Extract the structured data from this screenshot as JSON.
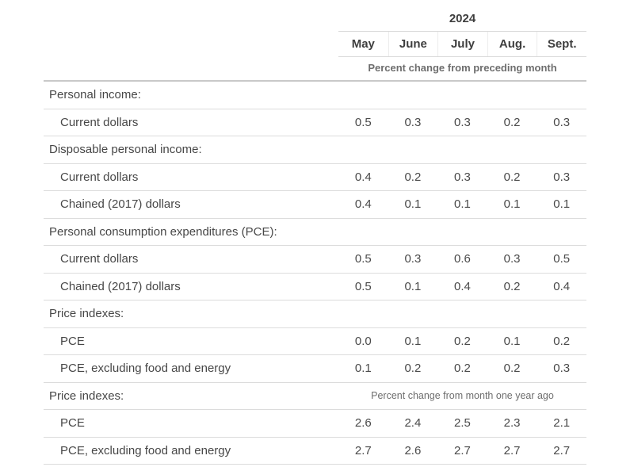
{
  "table": {
    "year_header": "2024",
    "columns": [
      "May",
      "June",
      "July",
      "Aug.",
      "Sept."
    ],
    "band_top": "Percent change from preceding month",
    "sections": [
      {
        "header": "Personal income:",
        "annotation": "",
        "rows": [
          {
            "label": "Current dollars",
            "values": [
              "0.5",
              "0.3",
              "0.3",
              "0.2",
              "0.3"
            ]
          }
        ]
      },
      {
        "header": "Disposable personal income:",
        "annotation": "",
        "rows": [
          {
            "label": "Current dollars",
            "values": [
              "0.4",
              "0.2",
              "0.3",
              "0.2",
              "0.3"
            ]
          },
          {
            "label": "Chained (2017) dollars",
            "values": [
              "0.4",
              "0.1",
              "0.1",
              "0.1",
              "0.1"
            ]
          }
        ]
      },
      {
        "header": "Personal consumption expenditures (PCE):",
        "annotation": "",
        "rows": [
          {
            "label": "Current dollars",
            "values": [
              "0.5",
              "0.3",
              "0.6",
              "0.3",
              "0.5"
            ]
          },
          {
            "label": "Chained (2017) dollars",
            "values": [
              "0.5",
              "0.1",
              "0.4",
              "0.2",
              "0.4"
            ]
          }
        ]
      },
      {
        "header": "Price indexes:",
        "annotation": "",
        "rows": [
          {
            "label": "PCE",
            "values": [
              "0.0",
              "0.1",
              "0.2",
              "0.1",
              "0.2"
            ]
          },
          {
            "label": "PCE, excluding food and energy",
            "values": [
              "0.1",
              "0.2",
              "0.2",
              "0.2",
              "0.3"
            ]
          }
        ]
      },
      {
        "header": "Price indexes:",
        "annotation": "Percent change from month one year ago",
        "rows": [
          {
            "label": "PCE",
            "values": [
              "2.6",
              "2.4",
              "2.5",
              "2.3",
              "2.1"
            ]
          },
          {
            "label": "PCE, excluding food and energy",
            "values": [
              "2.7",
              "2.6",
              "2.7",
              "2.7",
              "2.7"
            ]
          }
        ]
      }
    ],
    "colors": {
      "text": "#474747",
      "muted_text": "#6e6e6e",
      "row_line": "#dcdcdc",
      "header_line": "#d9d9d9",
      "thick_line": "#c9c9c9",
      "background": "#ffffff"
    }
  },
  "chart_data": {
    "type": "table",
    "title": "2024",
    "columns": [
      "May",
      "June",
      "July",
      "Aug.",
      "Sept."
    ],
    "units_rows_1_to_11": "Percent change from preceding month",
    "units_rows_12_to_14": "Percent change from month one year ago",
    "rows": [
      {
        "label": "Personal income:",
        "section_header": true,
        "values": []
      },
      {
        "label": "Current dollars",
        "values": [
          0.5,
          0.3,
          0.3,
          0.2,
          0.3
        ]
      },
      {
        "label": "Disposable personal income:",
        "section_header": true,
        "values": []
      },
      {
        "label": "Current dollars",
        "values": [
          0.4,
          0.2,
          0.3,
          0.2,
          0.3
        ]
      },
      {
        "label": "Chained (2017) dollars",
        "values": [
          0.4,
          0.1,
          0.1,
          0.1,
          0.1
        ]
      },
      {
        "label": "Personal consumption expenditures (PCE):",
        "section_header": true,
        "values": []
      },
      {
        "label": "Current dollars",
        "values": [
          0.5,
          0.3,
          0.6,
          0.3,
          0.5
        ]
      },
      {
        "label": "Chained (2017) dollars",
        "values": [
          0.5,
          0.1,
          0.4,
          0.2,
          0.4
        ]
      },
      {
        "label": "Price indexes:",
        "section_header": true,
        "values": []
      },
      {
        "label": "PCE",
        "values": [
          0.0,
          0.1,
          0.2,
          0.1,
          0.2
        ]
      },
      {
        "label": "PCE, excluding food and energy",
        "values": [
          0.1,
          0.2,
          0.2,
          0.2,
          0.3
        ]
      },
      {
        "label": "Price indexes:",
        "section_header": true,
        "values": []
      },
      {
        "label": "PCE",
        "values": [
          2.6,
          2.4,
          2.5,
          2.3,
          2.1
        ]
      },
      {
        "label": "PCE, excluding food and energy",
        "values": [
          2.7,
          2.6,
          2.7,
          2.7,
          2.7
        ]
      }
    ]
  }
}
